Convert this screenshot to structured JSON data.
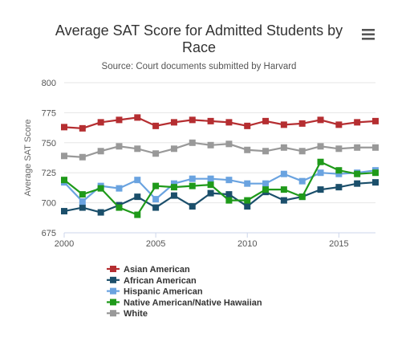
{
  "chart_data": {
    "type": "line",
    "title_line1": "Average SAT Score for Admitted Students by",
    "title_line2": "Race",
    "subtitle": "Source: Court documents submitted by Harvard",
    "ylabel": "Average SAT Score",
    "xlabel": "",
    "xlim": [
      2000,
      2017
    ],
    "ylim": [
      675,
      800
    ],
    "x_ticks": [
      2000,
      2005,
      2010,
      2015
    ],
    "y_ticks": [
      675,
      700,
      725,
      750,
      775,
      800
    ],
    "grid": true,
    "legend_position": "bottom-left",
    "x": [
      2000,
      2001,
      2002,
      2003,
      2004,
      2005,
      2006,
      2007,
      2008,
      2009,
      2010,
      2011,
      2012,
      2013,
      2014,
      2015,
      2016,
      2017
    ],
    "series": [
      {
        "name": "Asian American",
        "color": "#b52e31",
        "values": [
          763,
          762,
          767,
          769,
          771,
          764,
          767,
          769,
          768,
          767,
          764,
          768,
          765,
          766,
          769,
          765,
          767,
          768
        ]
      },
      {
        "name": "African American",
        "color": "#1b4f6b",
        "values": [
          693,
          696,
          692,
          698,
          705,
          696,
          706,
          697,
          708,
          707,
          697,
          709,
          702,
          705,
          711,
          713,
          716,
          717
        ]
      },
      {
        "name": "Hispanic American",
        "color": "#6aa3e0",
        "values": [
          717,
          701,
          714,
          712,
          719,
          703,
          716,
          720,
          720,
          719,
          716,
          716,
          724,
          718,
          725,
          724,
          725,
          727
        ]
      },
      {
        "name": "Native American/Native Hawaiian",
        "color": "#1f9a1a",
        "values": [
          719,
          707,
          712,
          696,
          690,
          714,
          713,
          714,
          715,
          702,
          702,
          711,
          711,
          705,
          734,
          727,
          724,
          725
        ]
      },
      {
        "name": "White",
        "color": "#999999",
        "values": [
          739,
          738,
          743,
          747,
          745,
          741,
          745,
          750,
          748,
          749,
          744,
          743,
          746,
          743,
          747,
          745,
          746,
          746
        ]
      }
    ]
  },
  "menu": {
    "icon": "hamburger-menu-icon"
  }
}
